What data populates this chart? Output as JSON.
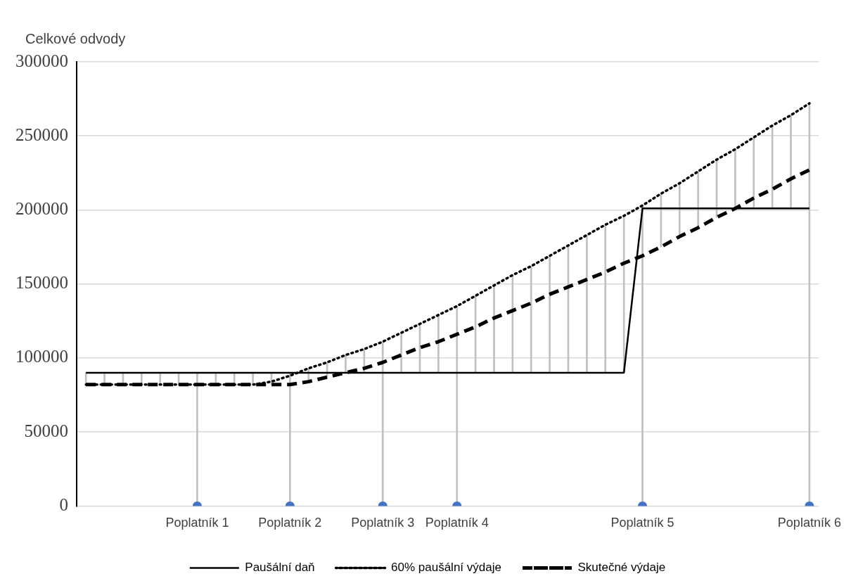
{
  "chart_data": {
    "type": "line",
    "ylabel": "Celkové odvody",
    "categories": [
      null,
      null,
      null,
      null,
      null,
      null,
      "Poplatník 1",
      null,
      null,
      null,
      null,
      "Poplatník 2",
      null,
      null,
      null,
      null,
      "Poplatník 3",
      null,
      null,
      null,
      "Poplatník 4",
      null,
      null,
      null,
      null,
      null,
      null,
      null,
      null,
      null,
      "Poplatník 5",
      null,
      null,
      null,
      null,
      null,
      null,
      null,
      null,
      "Poplatník 6"
    ],
    "series": [
      {
        "name": "Paušální daň",
        "color": "#000000",
        "line_style": "solid",
        "values": [
          90000,
          90000,
          90000,
          90000,
          90000,
          90000,
          90000,
          90000,
          90000,
          90000,
          90000,
          90000,
          90000,
          90000,
          90000,
          90000,
          90000,
          90000,
          90000,
          90000,
          90000,
          90000,
          90000,
          90000,
          90000,
          90000,
          90000,
          90000,
          90000,
          90000,
          201000,
          201000,
          201000,
          201000,
          201000,
          201000,
          201000,
          201000,
          201000,
          201000
        ]
      },
      {
        "name": "60% paušální výdaje",
        "color": "#000000",
        "line_style": "dotted",
        "values": [
          82000,
          82000,
          82000,
          82000,
          82000,
          82000,
          82000,
          82000,
          82000,
          82000,
          84000,
          88000,
          93000,
          97000,
          102000,
          106000,
          111000,
          117000,
          123000,
          129000,
          135000,
          142000,
          149000,
          156000,
          162000,
          169000,
          176000,
          183000,
          190000,
          196000,
          203000,
          211000,
          218000,
          226000,
          234000,
          241000,
          249000,
          257000,
          264000,
          272000
        ]
      },
      {
        "name": "Skutečné výdaje",
        "color": "#000000",
        "line_style": "dashed",
        "values": [
          82000,
          82000,
          82000,
          82000,
          82000,
          82000,
          82000,
          82000,
          82000,
          82000,
          82000,
          82000,
          84000,
          87000,
          90000,
          93000,
          97000,
          102000,
          107000,
          111000,
          116000,
          121000,
          127000,
          132000,
          137000,
          143000,
          148000,
          153000,
          158000,
          164000,
          169000,
          175000,
          182000,
          188000,
          195000,
          201000,
          208000,
          214000,
          221000,
          227000
        ]
      },
      {
        "type": "bar",
        "color": "#c0c0c0",
        "base": [
          82000,
          82000,
          82000,
          82000,
          82000,
          82000,
          0,
          82000,
          82000,
          82000,
          82000,
          0,
          84000,
          87000,
          90000,
          90000,
          0,
          90000,
          90000,
          90000,
          0,
          90000,
          90000,
          90000,
          90000,
          90000,
          90000,
          90000,
          90000,
          90000,
          0,
          175000,
          182000,
          188000,
          195000,
          201000,
          201000,
          201000,
          201000,
          0
        ],
        "values": [
          8000,
          8000,
          8000,
          8000,
          8000,
          8000,
          90000,
          8000,
          8000,
          8000,
          8000,
          90000,
          9000,
          10000,
          12000,
          16000,
          111000,
          27000,
          33000,
          39000,
          135000,
          52000,
          59000,
          66000,
          72000,
          79000,
          86000,
          93000,
          100000,
          106000,
          203000,
          36000,
          36000,
          38000,
          39000,
          40000,
          48000,
          56000,
          63000,
          272000
        ]
      },
      {
        "type": "scatter",
        "color": "#4472c4",
        "marker": "circle",
        "values": [
          null,
          null,
          null,
          null,
          null,
          null,
          0,
          null,
          null,
          null,
          null,
          0,
          null,
          null,
          null,
          null,
          0,
          null,
          null,
          null,
          0,
          null,
          null,
          null,
          null,
          null,
          null,
          null,
          null,
          null,
          0,
          null,
          null,
          null,
          null,
          null,
          null,
          null,
          null,
          0
        ]
      }
    ],
    "ylim": [
      0,
      300000
    ],
    "yticks": [
      0,
      50000,
      100000,
      150000,
      200000,
      250000,
      300000
    ],
    "grid": "y",
    "legend": "bottom"
  }
}
